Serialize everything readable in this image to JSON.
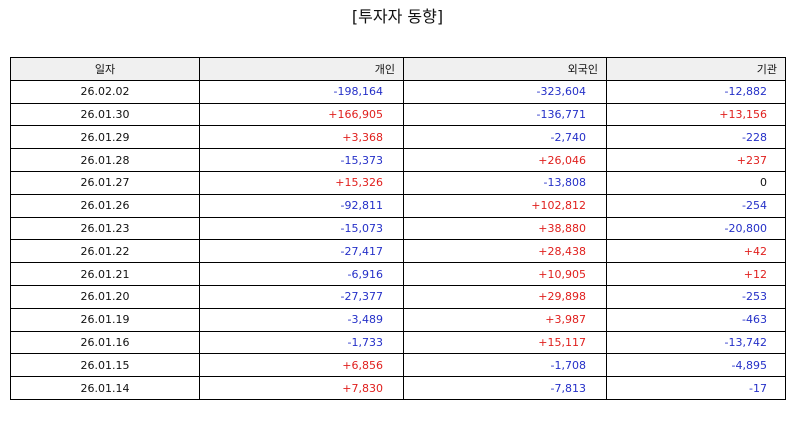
{
  "title": "[투자자 동향]",
  "colors": {
    "positive": "#e0201e",
    "negative": "#2530c8",
    "zero": "#111111",
    "header_bg": "#f0f0f0"
  },
  "table": {
    "headers": [
      "일자",
      "개인",
      "외국인",
      "기관"
    ],
    "rows": [
      [
        "26.02.02",
        "-198,164",
        "-323,604",
        "-12,882"
      ],
      [
        "26.01.30",
        "+166,905",
        "-136,771",
        "+13,156"
      ],
      [
        "26.01.29",
        "+3,368",
        "-2,740",
        "-228"
      ],
      [
        "26.01.28",
        "-15,373",
        "+26,046",
        "+237"
      ],
      [
        "26.01.27",
        "+15,326",
        "-13,808",
        "0"
      ],
      [
        "26.01.26",
        "-92,811",
        "+102,812",
        "-254"
      ],
      [
        "26.01.23",
        "-15,073",
        "+38,880",
        "-20,800"
      ],
      [
        "26.01.22",
        "-27,417",
        "+28,438",
        "+42"
      ],
      [
        "26.01.21",
        "-6,916",
        "+10,905",
        "+12"
      ],
      [
        "26.01.20",
        "-27,377",
        "+29,898",
        "-253"
      ],
      [
        "26.01.19",
        "-3,489",
        "+3,987",
        "-463"
      ],
      [
        "26.01.16",
        "-1,733",
        "+15,117",
        "-13,742"
      ],
      [
        "26.01.15",
        "+6,856",
        "-1,708",
        "-4,895"
      ],
      [
        "26.01.14",
        "+7,830",
        "-7,813",
        "-17"
      ]
    ]
  }
}
